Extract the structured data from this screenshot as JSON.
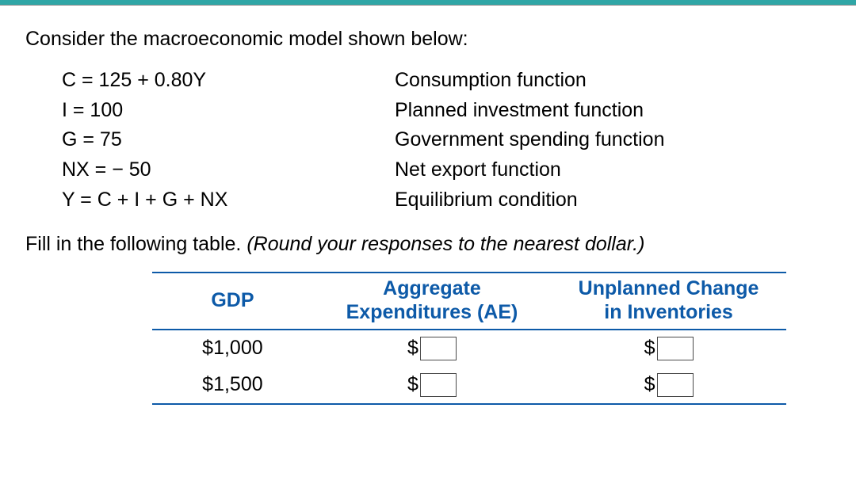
{
  "intro": "Consider the macroeconomic model shown below:",
  "equations": [
    {
      "lhs": "C = 125 + 0.80Y",
      "rhs": "Consumption function"
    },
    {
      "lhs": "I = 100",
      "rhs": "Planned investment function"
    },
    {
      "lhs": "G = 75",
      "rhs": "Government spending function"
    },
    {
      "lhs": "NX = − 50",
      "rhs": "Net export function"
    },
    {
      "lhs": "Y = C + I + G + NX",
      "rhs": "Equilibrium condition"
    }
  ],
  "fill_in_prefix": "Fill in the following table. ",
  "fill_in_italic": "(Round your responses to the nearest dollar.)",
  "table": {
    "headers": {
      "gdp": "GDP",
      "ae_line1": "Aggregate",
      "ae_line2": "Expenditures (AE)",
      "uci_line1": "Unplanned Change",
      "uci_line2": "in Inventories"
    },
    "currency": "$",
    "rows": [
      {
        "gdp": "$1,000",
        "ae": "",
        "uci": ""
      },
      {
        "gdp": "$1,500",
        "ae": "",
        "uci": ""
      }
    ]
  },
  "colors": {
    "header_text": "#0d5aa8",
    "header_border": "#0d5aa8",
    "top_bar": "#2fa6a6",
    "body_text": "#000000",
    "background": "#ffffff",
    "input_border": "#4a4a4a"
  }
}
